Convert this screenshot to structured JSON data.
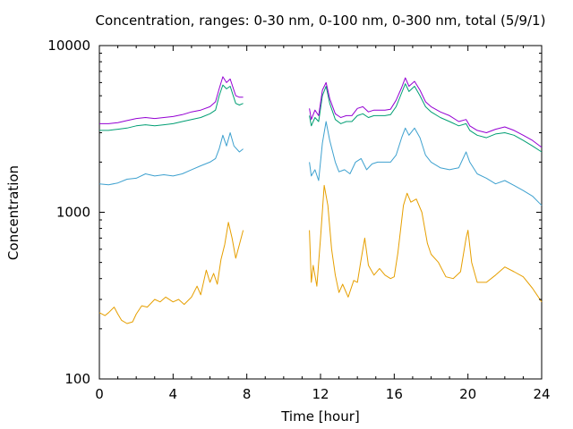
{
  "chart_data": {
    "type": "line",
    "title": "Concentration, ranges: 0-30 nm, 0-100 nm, 0-300 nm, total (5/9/1)",
    "xlabel": "Time [hour]",
    "ylabel": "Concentration",
    "xlim": [
      0,
      24
    ],
    "ylim": [
      100,
      10000
    ],
    "yscale": "log",
    "xticks": [
      0,
      4,
      8,
      12,
      16,
      20,
      24
    ],
    "xtick_labels": [
      "0",
      "4",
      "8",
      "12",
      "16",
      "20",
      "24"
    ],
    "yticks": [
      100,
      1000,
      10000
    ],
    "ytick_labels": [
      "100",
      "1000",
      "10000"
    ],
    "grid": false,
    "series": [
      {
        "color": "#e69f00",
        "segments": [
          [
            [
              0,
              250
            ],
            [
              0.3,
              240
            ],
            [
              0.5,
              250
            ],
            [
              0.8,
              270
            ],
            [
              1.0,
              245
            ],
            [
              1.2,
              225
            ],
            [
              1.5,
              215
            ],
            [
              1.8,
              220
            ],
            [
              2.0,
              245
            ],
            [
              2.3,
              275
            ],
            [
              2.6,
              270
            ],
            [
              3.0,
              300
            ],
            [
              3.3,
              290
            ],
            [
              3.6,
              310
            ],
            [
              4.0,
              290
            ],
            [
              4.3,
              300
            ],
            [
              4.6,
              280
            ],
            [
              5.0,
              310
            ],
            [
              5.3,
              360
            ],
            [
              5.5,
              320
            ],
            [
              5.8,
              450
            ],
            [
              6.0,
              380
            ],
            [
              6.2,
              430
            ],
            [
              6.4,
              370
            ],
            [
              6.6,
              520
            ],
            [
              6.8,
              640
            ],
            [
              7.0,
              870
            ],
            [
              7.2,
              700
            ],
            [
              7.4,
              530
            ],
            [
              7.6,
              640
            ],
            [
              7.8,
              780
            ]
          ],
          [
            [
              11.4,
              780
            ],
            [
              11.5,
              380
            ],
            [
              11.6,
              480
            ],
            [
              11.8,
              360
            ],
            [
              12.0,
              700
            ],
            [
              12.2,
              1450
            ],
            [
              12.4,
              1100
            ],
            [
              12.6,
              600
            ],
            [
              12.8,
              420
            ],
            [
              13.0,
              330
            ],
            [
              13.2,
              370
            ],
            [
              13.5,
              310
            ],
            [
              13.8,
              390
            ],
            [
              14.0,
              380
            ],
            [
              14.2,
              520
            ],
            [
              14.4,
              700
            ],
            [
              14.6,
              480
            ],
            [
              14.9,
              420
            ],
            [
              15.2,
              460
            ],
            [
              15.5,
              420
            ],
            [
              15.8,
              400
            ],
            [
              16.0,
              410
            ],
            [
              16.2,
              570
            ],
            [
              16.5,
              1100
            ],
            [
              16.7,
              1300
            ],
            [
              16.9,
              1150
            ],
            [
              17.2,
              1200
            ],
            [
              17.5,
              1000
            ],
            [
              17.8,
              650
            ],
            [
              18.0,
              560
            ],
            [
              18.4,
              500
            ],
            [
              18.8,
              410
            ],
            [
              19.2,
              400
            ],
            [
              19.6,
              440
            ],
            [
              19.9,
              700
            ],
            [
              20.0,
              780
            ],
            [
              20.2,
              500
            ],
            [
              20.5,
              380
            ],
            [
              21.0,
              380
            ],
            [
              21.5,
              420
            ],
            [
              22.0,
              470
            ],
            [
              22.5,
              440
            ],
            [
              23.0,
              410
            ],
            [
              23.5,
              350
            ],
            [
              24.0,
              290
            ]
          ]
        ]
      },
      {
        "color": "#3ea1cf",
        "segments": [
          [
            [
              0,
              1480
            ],
            [
              0.5,
              1460
            ],
            [
              1.0,
              1500
            ],
            [
              1.5,
              1580
            ],
            [
              2.0,
              1600
            ],
            [
              2.5,
              1700
            ],
            [
              3.0,
              1650
            ],
            [
              3.5,
              1680
            ],
            [
              4.0,
              1650
            ],
            [
              4.5,
              1700
            ],
            [
              5.0,
              1800
            ],
            [
              5.5,
              1900
            ],
            [
              6.0,
              2000
            ],
            [
              6.3,
              2100
            ],
            [
              6.5,
              2400
            ],
            [
              6.7,
              2900
            ],
            [
              6.9,
              2500
            ],
            [
              7.1,
              3000
            ],
            [
              7.3,
              2500
            ],
            [
              7.6,
              2300
            ],
            [
              7.8,
              2400
            ]
          ],
          [
            [
              11.4,
              2000
            ],
            [
              11.5,
              1650
            ],
            [
              11.7,
              1800
            ],
            [
              11.9,
              1550
            ],
            [
              12.1,
              2600
            ],
            [
              12.3,
              3500
            ],
            [
              12.5,
              2700
            ],
            [
              12.8,
              2000
            ],
            [
              13.0,
              1750
            ],
            [
              13.3,
              1800
            ],
            [
              13.6,
              1700
            ],
            [
              13.9,
              2000
            ],
            [
              14.2,
              2100
            ],
            [
              14.5,
              1800
            ],
            [
              14.8,
              1950
            ],
            [
              15.1,
              2000
            ],
            [
              15.4,
              2000
            ],
            [
              15.8,
              2000
            ],
            [
              16.1,
              2200
            ],
            [
              16.4,
              2800
            ],
            [
              16.6,
              3200
            ],
            [
              16.8,
              2900
            ],
            [
              17.1,
              3200
            ],
            [
              17.4,
              2800
            ],
            [
              17.7,
              2200
            ],
            [
              18.0,
              2000
            ],
            [
              18.5,
              1850
            ],
            [
              19.0,
              1800
            ],
            [
              19.5,
              1850
            ],
            [
              19.9,
              2300
            ],
            [
              20.1,
              2000
            ],
            [
              20.5,
              1700
            ],
            [
              21.0,
              1600
            ],
            [
              21.5,
              1480
            ],
            [
              22.0,
              1550
            ],
            [
              22.5,
              1450
            ],
            [
              23.0,
              1350
            ],
            [
              23.5,
              1250
            ],
            [
              24.0,
              1100
            ]
          ]
        ]
      },
      {
        "color": "#009e73",
        "segments": [
          [
            [
              0,
              3100
            ],
            [
              0.5,
              3100
            ],
            [
              1.0,
              3150
            ],
            [
              1.5,
              3200
            ],
            [
              2.0,
              3300
            ],
            [
              2.5,
              3350
            ],
            [
              3.0,
              3300
            ],
            [
              3.5,
              3350
            ],
            [
              4.0,
              3400
            ],
            [
              4.5,
              3500
            ],
            [
              5.0,
              3600
            ],
            [
              5.5,
              3700
            ],
            [
              6.0,
              3900
            ],
            [
              6.3,
              4100
            ],
            [
              6.5,
              5000
            ],
            [
              6.7,
              5800
            ],
            [
              6.9,
              5500
            ],
            [
              7.1,
              5700
            ],
            [
              7.4,
              4500
            ],
            [
              7.6,
              4400
            ],
            [
              7.8,
              4500
            ]
          ],
          [
            [
              11.4,
              3800
            ],
            [
              11.5,
              3300
            ],
            [
              11.7,
              3700
            ],
            [
              11.9,
              3500
            ],
            [
              12.1,
              5000
            ],
            [
              12.3,
              5700
            ],
            [
              12.5,
              4500
            ],
            [
              12.8,
              3600
            ],
            [
              13.1,
              3400
            ],
            [
              13.4,
              3500
            ],
            [
              13.7,
              3500
            ],
            [
              14.0,
              3800
            ],
            [
              14.3,
              3900
            ],
            [
              14.6,
              3700
            ],
            [
              14.9,
              3800
            ],
            [
              15.2,
              3800
            ],
            [
              15.5,
              3800
            ],
            [
              15.8,
              3850
            ],
            [
              16.1,
              4300
            ],
            [
              16.4,
              5200
            ],
            [
              16.6,
              5900
            ],
            [
              16.8,
              5300
            ],
            [
              17.1,
              5700
            ],
            [
              17.4,
              5000
            ],
            [
              17.7,
              4300
            ],
            [
              18.0,
              4000
            ],
            [
              18.5,
              3700
            ],
            [
              19.0,
              3500
            ],
            [
              19.5,
              3300
            ],
            [
              19.9,
              3400
            ],
            [
              20.1,
              3100
            ],
            [
              20.5,
              2900
            ],
            [
              21.0,
              2800
            ],
            [
              21.5,
              2950
            ],
            [
              22.0,
              3000
            ],
            [
              22.5,
              2900
            ],
            [
              23.0,
              2700
            ],
            [
              23.5,
              2500
            ],
            [
              24.0,
              2300
            ]
          ]
        ]
      },
      {
        "color": "#9400d3",
        "segments": [
          [
            [
              0,
              3400
            ],
            [
              0.5,
              3400
            ],
            [
              1.0,
              3450
            ],
            [
              1.5,
              3550
            ],
            [
              2.0,
              3650
            ],
            [
              2.5,
              3700
            ],
            [
              3.0,
              3650
            ],
            [
              3.5,
              3700
            ],
            [
              4.0,
              3750
            ],
            [
              4.5,
              3850
            ],
            [
              5.0,
              4000
            ],
            [
              5.5,
              4100
            ],
            [
              6.0,
              4300
            ],
            [
              6.3,
              4600
            ],
            [
              6.5,
              5500
            ],
            [
              6.7,
              6500
            ],
            [
              6.9,
              6000
            ],
            [
              7.1,
              6300
            ],
            [
              7.4,
              5000
            ],
            [
              7.6,
              4900
            ],
            [
              7.8,
              4900
            ]
          ],
          [
            [
              11.4,
              4200
            ],
            [
              11.5,
              3600
            ],
            [
              11.7,
              4100
            ],
            [
              11.9,
              3800
            ],
            [
              12.1,
              5400
            ],
            [
              12.3,
              6000
            ],
            [
              12.5,
              4800
            ],
            [
              12.8,
              3900
            ],
            [
              13.1,
              3700
            ],
            [
              13.4,
              3800
            ],
            [
              13.7,
              3800
            ],
            [
              14.0,
              4200
            ],
            [
              14.3,
              4300
            ],
            [
              14.6,
              4000
            ],
            [
              14.9,
              4100
            ],
            [
              15.2,
              4100
            ],
            [
              15.5,
              4100
            ],
            [
              15.8,
              4150
            ],
            [
              16.1,
              4700
            ],
            [
              16.4,
              5600
            ],
            [
              16.6,
              6400
            ],
            [
              16.8,
              5700
            ],
            [
              17.1,
              6100
            ],
            [
              17.4,
              5400
            ],
            [
              17.7,
              4600
            ],
            [
              18.0,
              4300
            ],
            [
              18.5,
              4000
            ],
            [
              19.0,
              3800
            ],
            [
              19.5,
              3500
            ],
            [
              19.9,
              3600
            ],
            [
              20.1,
              3300
            ],
            [
              20.5,
              3100
            ],
            [
              21.0,
              3000
            ],
            [
              21.5,
              3150
            ],
            [
              22.0,
              3250
            ],
            [
              22.5,
              3100
            ],
            [
              23.0,
              2900
            ],
            [
              23.5,
              2700
            ],
            [
              24.0,
              2450
            ]
          ]
        ]
      }
    ]
  }
}
